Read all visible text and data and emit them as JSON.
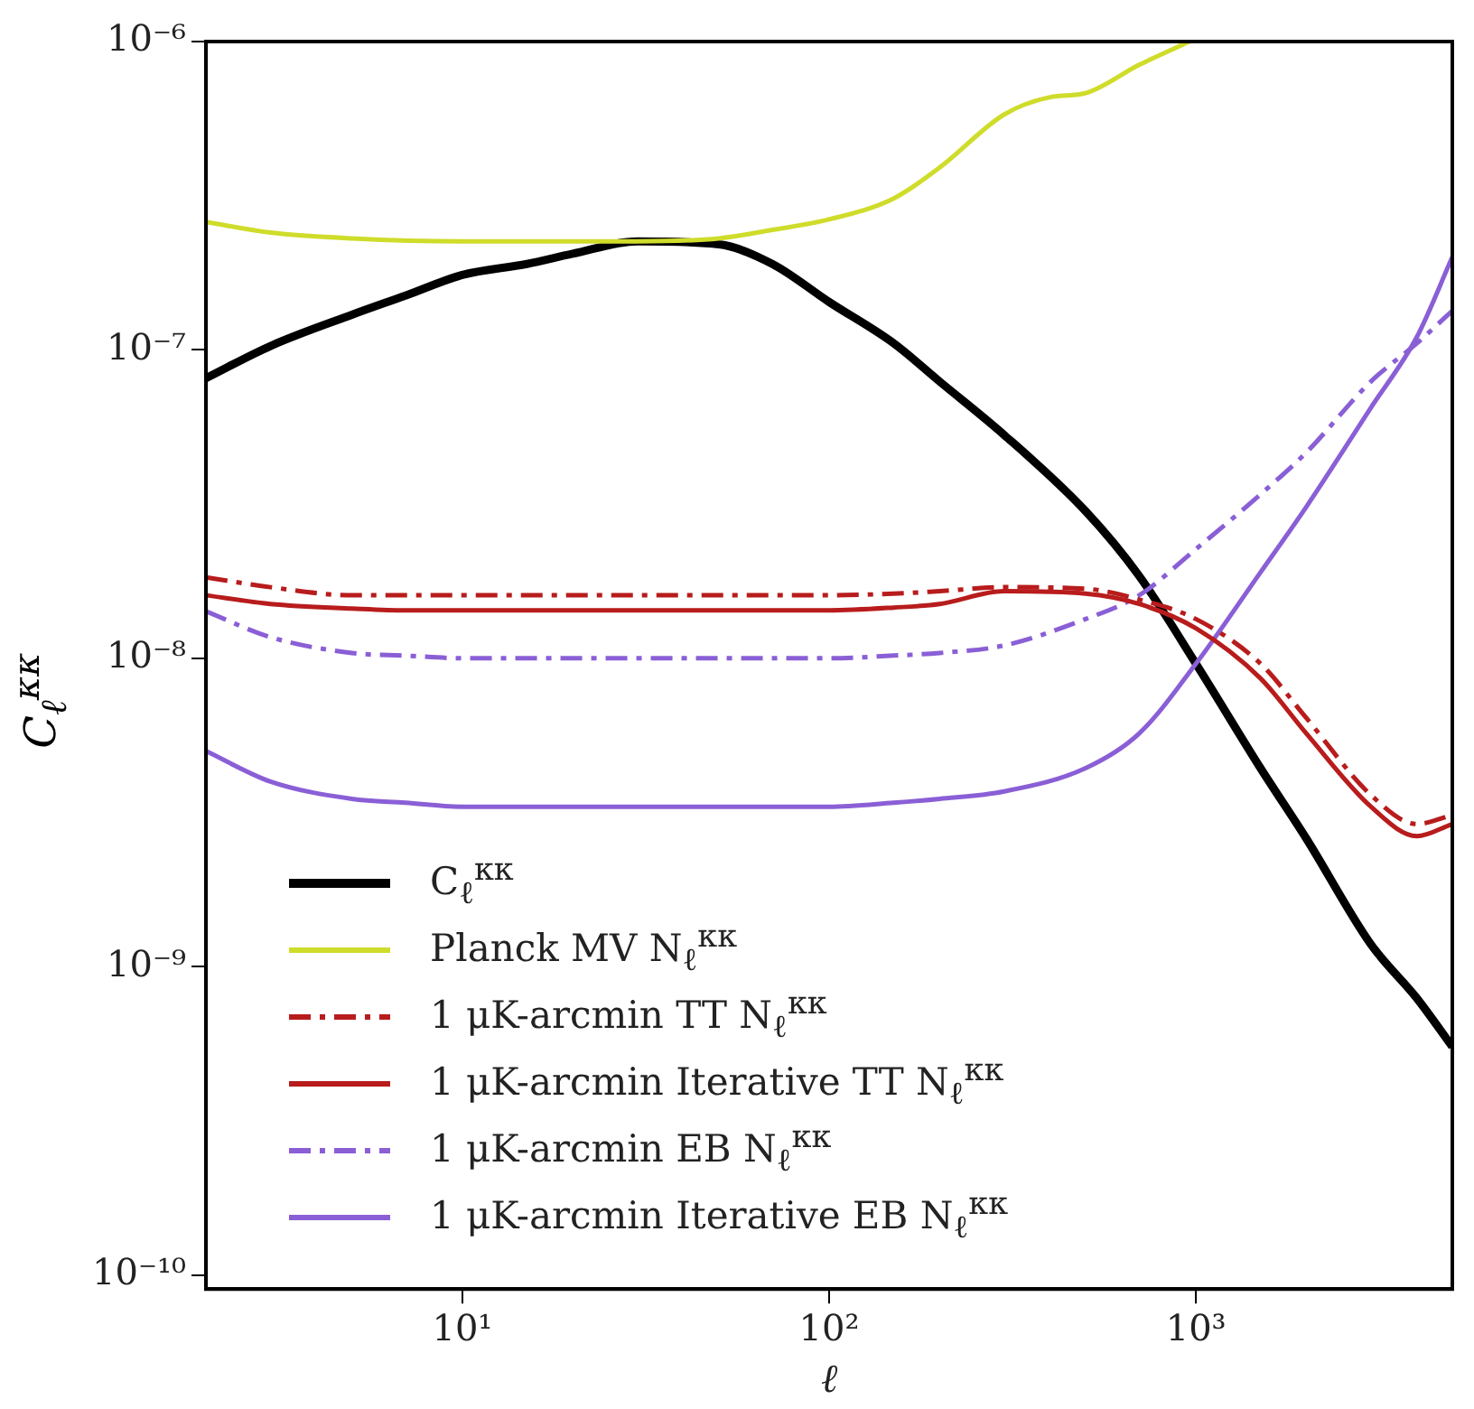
{
  "chart_data": {
    "type": "line",
    "xlabel": "ℓ",
    "ylabel": "C$_{ℓ}$$^{κκ}$",
    "log": "xy",
    "grid": false,
    "legend": "bottom left",
    "marker": "none",
    "xlim": [
      2,
      5000
    ],
    "ylim": [
      9e-11,
      1e-06
    ],
    "xticks": [
      {
        "value": 10,
        "label": "10¹"
      },
      {
        "value": 100,
        "label": "10²"
      },
      {
        "value": 1000,
        "label": "10³"
      }
    ],
    "yticks": [
      {
        "value": 1e-10,
        "label": "10⁻¹⁰"
      },
      {
        "value": 1e-09,
        "label": "10⁻⁹"
      },
      {
        "value": 1e-08,
        "label": "10⁻⁸"
      },
      {
        "value": 1e-07,
        "label": "10⁻⁷"
      },
      {
        "value": 1e-06,
        "label": "10⁻⁶"
      }
    ],
    "x": [
      2,
      3,
      5,
      7,
      10,
      15,
      20,
      30,
      50,
      70,
      100,
      150,
      200,
      300,
      500,
      700,
      1000,
      1500,
      2000,
      3000,
      4000,
      5000
    ],
    "series": [
      {
        "name": "C$_{ℓ}$$^{κκ}$",
        "color": "#000000",
        "line_style": "solid",
        "values": [
          8.1e-08,
          1.03e-07,
          1.3e-07,
          1.5e-07,
          1.75e-07,
          1.9e-07,
          2.05e-07,
          2.25e-07,
          2.2e-07,
          1.9e-07,
          1.43e-07,
          1.05e-07,
          7.9e-08,
          5.3e-08,
          3e-08,
          1.85e-08,
          9.6e-09,
          4.4e-09,
          2.6e-09,
          1.18e-09,
          7.9e-10,
          5.5e-10
        ]
      },
      {
        "name": "Planck MV N$_{ℓ}$$^{κκ}$",
        "color": "#cfdc2a",
        "line_style": "solid",
        "x": [
          2,
          3,
          5,
          10,
          20,
          30,
          50,
          70,
          100,
          150,
          200,
          300,
          400,
          500,
          700,
          960
        ],
        "values": [
          2.6e-07,
          2.4e-07,
          2.3e-07,
          2.25e-07,
          2.25e-07,
          2.25e-07,
          2.3e-07,
          2.45e-07,
          2.65e-07,
          3.1e-07,
          3.9e-07,
          5.8e-07,
          6.6e-07,
          6.8e-07,
          8.4e-07,
          1e-06
        ]
      },
      {
        "name": "1 μK-arcmin TT N$_{ℓ}$$^{κκ}$",
        "color": "#b81c1c",
        "line_style": "dashdot",
        "values": [
          1.83e-08,
          1.7e-08,
          1.6e-08,
          1.6e-08,
          1.6e-08,
          1.6e-08,
          1.6e-08,
          1.6e-08,
          1.6e-08,
          1.6e-08,
          1.6e-08,
          1.62e-08,
          1.65e-08,
          1.7e-08,
          1.68e-08,
          1.55e-08,
          1.34e-08,
          9.6e-09,
          6.4e-09,
          3.6e-09,
          2.9e-09,
          3.1e-09
        ]
      },
      {
        "name": "1 μK-arcmin Iterative TT N$_{ℓ}$$^{κκ}$",
        "color": "#b81c1c",
        "line_style": "solid",
        "values": [
          1.6e-08,
          1.5e-08,
          1.45e-08,
          1.43e-08,
          1.43e-08,
          1.43e-08,
          1.43e-08,
          1.43e-08,
          1.43e-08,
          1.43e-08,
          1.43e-08,
          1.46e-08,
          1.5e-08,
          1.65e-08,
          1.62e-08,
          1.5e-08,
          1.25e-08,
          8.6e-09,
          5.7e-09,
          3.3e-09,
          2.65e-09,
          2.9e-09
        ]
      },
      {
        "name": "1 μK-arcmin EB N$_{ℓ}$$^{κκ}$",
        "color": "#8a5fd6",
        "line_style": "dashdot",
        "values": [
          1.42e-08,
          1.17e-08,
          1.04e-08,
          1.02e-08,
          1e-08,
          1e-08,
          1e-08,
          1e-08,
          1e-08,
          1e-08,
          1e-08,
          1.02e-08,
          1.04e-08,
          1.1e-08,
          1.34e-08,
          1.6e-08,
          2.26e-08,
          3.4e-08,
          4.65e-08,
          7.9e-08,
          1.05e-07,
          1.34e-07
        ]
      },
      {
        "name": "1 μK-arcmin Iterative EB N$_{ℓ}$$^{κκ}$",
        "color": "#8a5fd6",
        "line_style": "solid",
        "values": [
          5e-09,
          3.98e-09,
          3.5e-09,
          3.4e-09,
          3.3e-09,
          3.3e-09,
          3.3e-09,
          3.3e-09,
          3.3e-09,
          3.3e-09,
          3.3e-09,
          3.4e-09,
          3.5e-09,
          3.7e-09,
          4.4e-09,
          5.7e-09,
          9.6e-09,
          1.9e-08,
          3.1e-08,
          6.5e-08,
          1.1e-07,
          2e-07
        ]
      }
    ]
  }
}
